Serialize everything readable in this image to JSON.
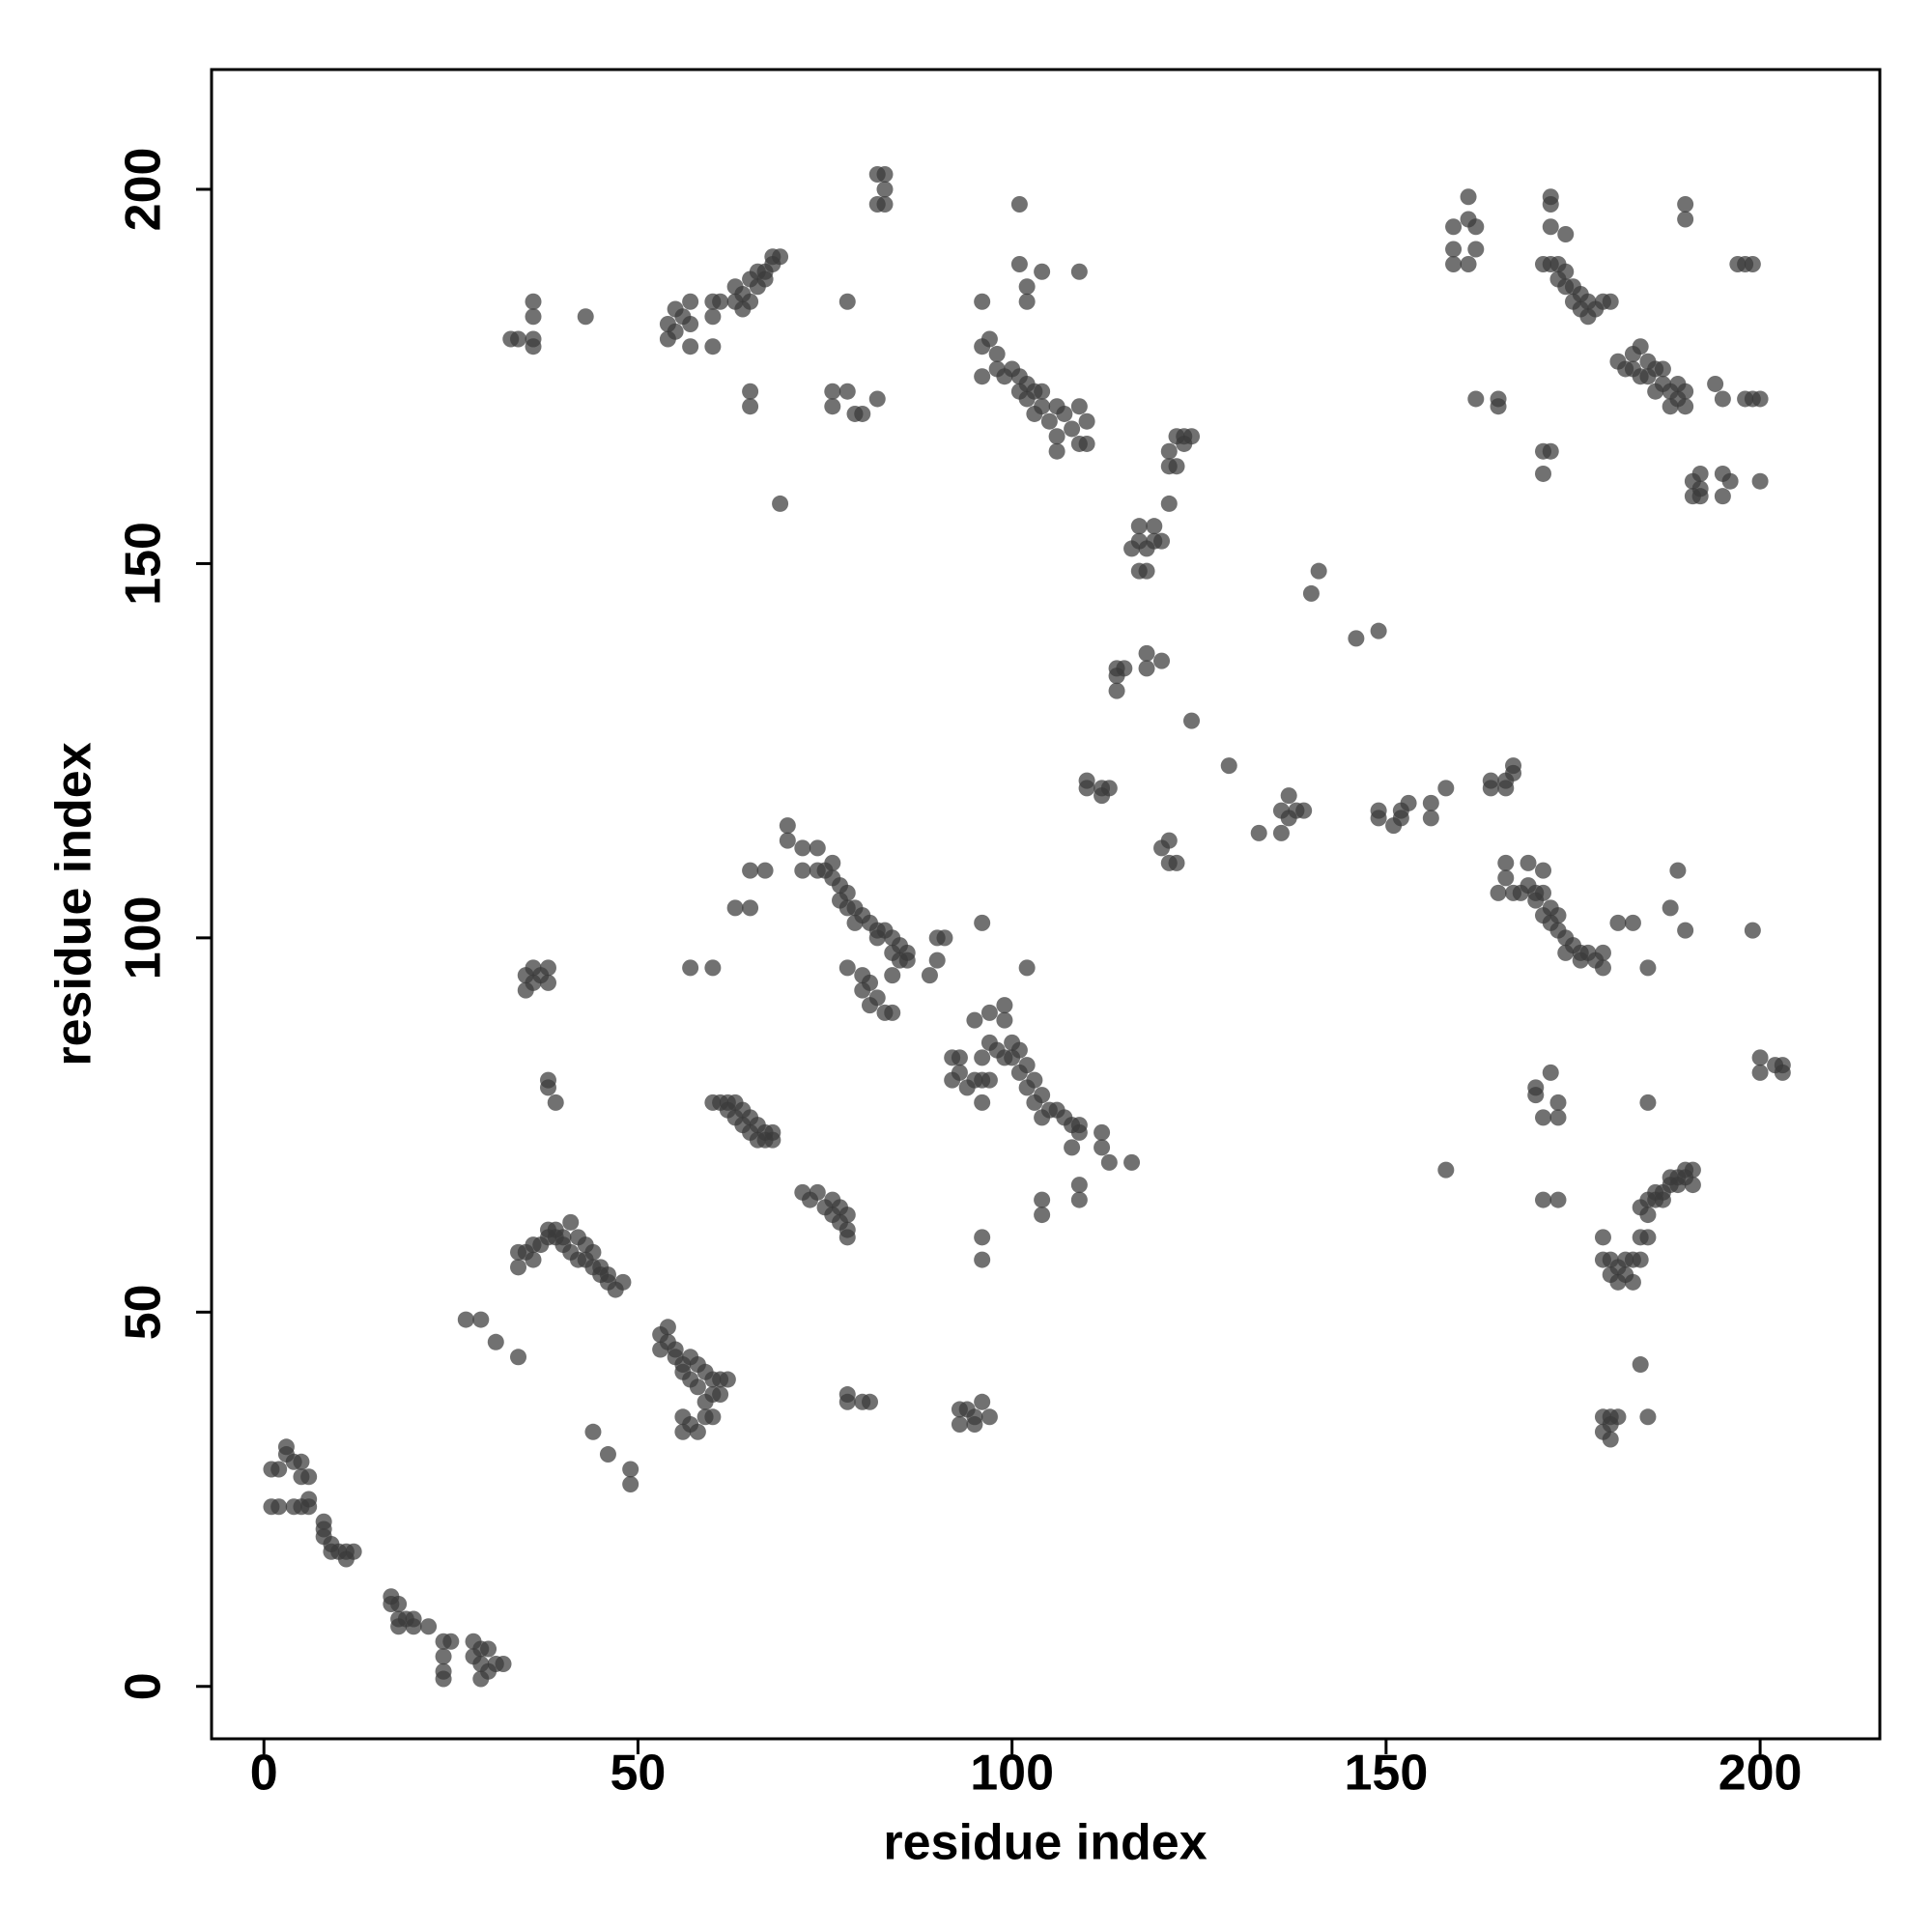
{
  "chart_data": {
    "type": "scatter",
    "xlabel": "residue index",
    "ylabel": "residue index",
    "xlim": [
      -7,
      216
    ],
    "ylim": [
      -7,
      216
    ],
    "xticks": [
      0,
      50,
      100,
      150,
      200
    ],
    "yticks": [
      0,
      50,
      100,
      150,
      200
    ],
    "color": "#3a3a3a",
    "opacity": 0.72,
    "x": [
      1,
      2,
      1,
      2,
      3,
      3,
      4,
      5,
      5,
      6,
      4,
      5,
      6,
      6,
      8,
      8,
      8,
      9,
      9,
      10,
      11,
      11,
      12,
      17,
      17,
      18,
      18,
      18,
      19,
      20,
      20,
      22,
      24,
      24,
      24,
      24,
      25,
      28,
      28,
      29,
      29,
      29,
      30,
      30,
      31,
      32,
      27,
      29,
      31,
      34,
      44,
      46,
      49,
      49,
      34,
      34,
      35,
      36,
      36,
      37,
      38,
      38,
      39,
      39,
      40,
      40,
      41,
      41,
      42,
      42,
      43,
      43,
      44,
      44,
      45,
      45,
      46,
      46,
      47,
      48,
      33,
      34,
      36,
      36,
      36,
      36,
      43,
      35,
      35,
      36,
      36,
      37,
      38,
      38,
      38,
      38,
      39,
      53,
      53,
      54,
      54,
      55,
      55,
      56,
      56,
      57,
      57,
      58,
      58,
      59,
      59,
      60,
      60,
      61,
      56,
      56,
      57,
      58,
      59,
      60,
      61,
      62,
      54,
      54,
      55,
      55,
      56,
      57,
      57,
      57,
      60,
      60,
      60,
      61,
      63,
      63,
      64,
      64,
      65,
      65,
      66,
      66,
      67,
      67,
      68,
      68,
      69,
      65,
      65,
      57,
      60,
      63,
      65,
      65,
      67,
      60,
      61,
      62,
      62,
      63,
      63,
      64,
      64,
      65,
      65,
      66,
      66,
      67,
      67,
      68,
      68,
      69,
      70,
      70,
      72,
      72,
      74,
      74,
      75,
      76,
      76,
      77,
      77,
      78,
      78,
      79,
      79,
      80,
      81,
      82,
      82,
      83,
      84,
      84,
      85,
      86,
      86,
      84,
      85,
      78,
      80,
      80,
      81,
      81,
      82,
      83,
      84,
      89,
      90,
      90,
      91,
      72,
      73,
      74,
      75,
      76,
      76,
      77,
      77,
      78,
      78,
      78,
      76,
      76,
      78,
      79,
      80,
      82,
      78,
      82,
      83,
      82,
      83,
      83,
      78,
      78,
      80,
      81,
      92,
      93,
      92,
      93,
      95,
      96,
      97,
      94,
      96,
      95,
      96,
      97,
      97,
      99,
      99,
      98,
      99,
      100,
      100,
      101,
      101,
      102,
      102,
      103,
      103,
      104,
      104,
      105,
      106,
      107,
      108,
      108,
      109,
      109,
      112,
      112,
      113,
      116,
      102,
      96,
      96,
      96,
      104,
      104,
      109,
      109,
      93,
      94,
      93,
      95,
      95,
      96,
      97,
      96,
      96,
      96,
      97,
      98,
      98,
      99,
      100,
      101,
      101,
      102,
      102,
      103,
      103,
      104,
      104,
      105,
      106,
      106,
      106,
      107,
      108,
      109,
      109,
      110,
      110,
      101,
      101,
      102,
      102,
      104,
      109,
      110,
      110,
      112,
      112,
      113,
      114,
      114,
      114,
      115,
      116,
      117,
      117,
      117,
      118,
      118,
      118,
      118,
      119,
      119,
      120,
      120,
      121,
      121,
      121,
      122,
      122,
      123,
      123,
      124,
      124,
      120,
      121,
      121,
      122,
      129,
      133,
      136,
      136,
      137,
      137,
      138,
      139,
      140,
      141,
      146,
      149,
      149,
      149,
      151,
      152,
      152,
      153,
      156,
      156,
      158,
      158,
      159,
      159,
      159,
      161,
      161,
      161,
      162,
      162,
      162,
      165,
      165,
      164,
      164,
      166,
      166,
      167,
      167,
      166,
      166,
      165,
      167,
      168,
      169,
      169,
      170,
      170,
      171,
      171,
      172,
      172,
      173,
      173,
      174,
      174,
      175,
      176,
      176,
      177,
      178,
      179,
      179,
      171,
      172,
      171,
      171,
      170,
      170,
      172,
      173,
      173,
      171,
      171,
      173,
      171,
      172,
      172,
      172,
      174,
      172,
      173,
      173,
      174,
      174,
      175,
      175,
      176,
      176,
      177,
      177,
      178,
      179,
      180,
      181,
      182,
      183,
      183,
      184,
      184,
      185,
      185,
      186,
      186,
      187,
      187,
      188,
      188,
      189,
      189,
      190,
      190,
      190,
      190,
      192,
      192,
      191,
      191,
      192,
      194,
      195,
      195,
      195,
      196,
      197,
      198,
      199,
      198,
      199,
      200,
      200,
      181,
      183,
      185,
      188,
      189,
      190,
      199,
      200,
      200,
      202,
      203,
      203,
      185,
      179,
      179,
      180,
      180,
      181,
      181,
      182,
      182,
      183,
      183,
      184,
      184,
      185,
      185,
      184,
      185,
      186,
      186,
      187,
      187,
      188,
      188,
      189,
      189,
      190,
      190,
      191,
      191,
      184,
      179,
      179,
      180,
      180,
      180,
      181,
      185
    ],
    "values": [
      24,
      24,
      29,
      29,
      31,
      32,
      30,
      30,
      28,
      28,
      24,
      24,
      25,
      24,
      22,
      21,
      20,
      19,
      18,
      18,
      17,
      18,
      18,
      11,
      12,
      11,
      9,
      8,
      9,
      8,
      9,
      8,
      6,
      4,
      2,
      1,
      6,
      6,
      4,
      5,
      3,
      1,
      5,
      2,
      3,
      3,
      49,
      49,
      46,
      44,
      34,
      31,
      29,
      27,
      56,
      58,
      58,
      57,
      59,
      59,
      60,
      61,
      60,
      61,
      60,
      59,
      62,
      58,
      57,
      60,
      59,
      57,
      58,
      56,
      56,
      55,
      54,
      55,
      53,
      54,
      180,
      180,
      180,
      179,
      183,
      185,
      183,
      93,
      95,
      96,
      94,
      95,
      96,
      94,
      80,
      81,
      78,
      45,
      47,
      46,
      48,
      45,
      44,
      43,
      42,
      44,
      41,
      43,
      40,
      42,
      38,
      39,
      41,
      41,
      36,
      34,
      35,
      34,
      36,
      36,
      39,
      41,
      180,
      182,
      181,
      184,
      183,
      185,
      182,
      179,
      185,
      179,
      183,
      185,
      185,
      187,
      186,
      184,
      188,
      185,
      189,
      187,
      189,
      188,
      191,
      190,
      191,
      173,
      171,
      96,
      96,
      104,
      104,
      109,
      109,
      78,
      78,
      77,
      78,
      76,
      78,
      77,
      75,
      76,
      74,
      73,
      75,
      73,
      74,
      74,
      73,
      158,
      115,
      113,
      112,
      109,
      112,
      109,
      109,
      108,
      110,
      107,
      105,
      106,
      104,
      104,
      102,
      103,
      102,
      101,
      100,
      101,
      100,
      98,
      99,
      98,
      97,
      95,
      97,
      96,
      95,
      93,
      94,
      91,
      92,
      90,
      90,
      95,
      97,
      100,
      100,
      66,
      65,
      66,
      64,
      63,
      65,
      64,
      62,
      63,
      61,
      60,
      173,
      171,
      173,
      170,
      170,
      172,
      185,
      202,
      202,
      198,
      198,
      200,
      39,
      38,
      38,
      38,
      84,
      84,
      81,
      82,
      81,
      81,
      81,
      80,
      78,
      89,
      84,
      86,
      90,
      91,
      89,
      85,
      84,
      86,
      84,
      85,
      82,
      83,
      80,
      81,
      78,
      79,
      76,
      77,
      77,
      76,
      75,
      72,
      75,
      74,
      74,
      72,
      70,
      70,
      96,
      102,
      60,
      57,
      65,
      63,
      67,
      65,
      37,
      37,
      35,
      35,
      36,
      38,
      36,
      185,
      179,
      175,
      180,
      178,
      176,
      175,
      176,
      175,
      173,
      174,
      172,
      173,
      170,
      171,
      173,
      169,
      171,
      167,
      165,
      170,
      168,
      171,
      166,
      169,
      166,
      198,
      190,
      187,
      185,
      189,
      189,
      120,
      121,
      119,
      120,
      120,
      135,
      136,
      133,
      136,
      152,
      155,
      149,
      153,
      152,
      149,
      138,
      136,
      153,
      155,
      153,
      137,
      158,
      165,
      163,
      167,
      163,
      166,
      167,
      167,
      129,
      112,
      113,
      110,
      110,
      123,
      114,
      117,
      114,
      119,
      116,
      117,
      117,
      146,
      149,
      140,
      141,
      117,
      116,
      115,
      116,
      117,
      118,
      118,
      116,
      120,
      69,
      192,
      195,
      190,
      199,
      196,
      190,
      195,
      192,
      172,
      172,
      171,
      121,
      120,
      121,
      120,
      122,
      123,
      110,
      108,
      106,
      106,
      106,
      110,
      107,
      106,
      105,
      106,
      103,
      104,
      102,
      103,
      101,
      100,
      98,
      99,
      98,
      97,
      98,
      97,
      98,
      96,
      109,
      165,
      165,
      162,
      79,
      80,
      82,
      78,
      76,
      76,
      65,
      65,
      190,
      199,
      198,
      195,
      194,
      190,
      188,
      190,
      187,
      189,
      187,
      185,
      186,
      184,
      185,
      183,
      184,
      185,
      185,
      177,
      176,
      176,
      178,
      179,
      175,
      177,
      175,
      176,
      173,
      176,
      174,
      173,
      171,
      172,
      174,
      173,
      171,
      198,
      196,
      160,
      162,
      161,
      159,
      159,
      174,
      172,
      162,
      159,
      161,
      190,
      190,
      190,
      172,
      172,
      172,
      161,
      102,
      102,
      96,
      104,
      109,
      101,
      101,
      82,
      84,
      83,
      83,
      82,
      78,
      60,
      57,
      57,
      55,
      54,
      56,
      55,
      57,
      54,
      57,
      60,
      57,
      60,
      63,
      64,
      65,
      65,
      66,
      66,
      65,
      67,
      68,
      67,
      68,
      69,
      68,
      69,
      67,
      43,
      36,
      34,
      36,
      35,
      33,
      36,
      36
    ]
  }
}
